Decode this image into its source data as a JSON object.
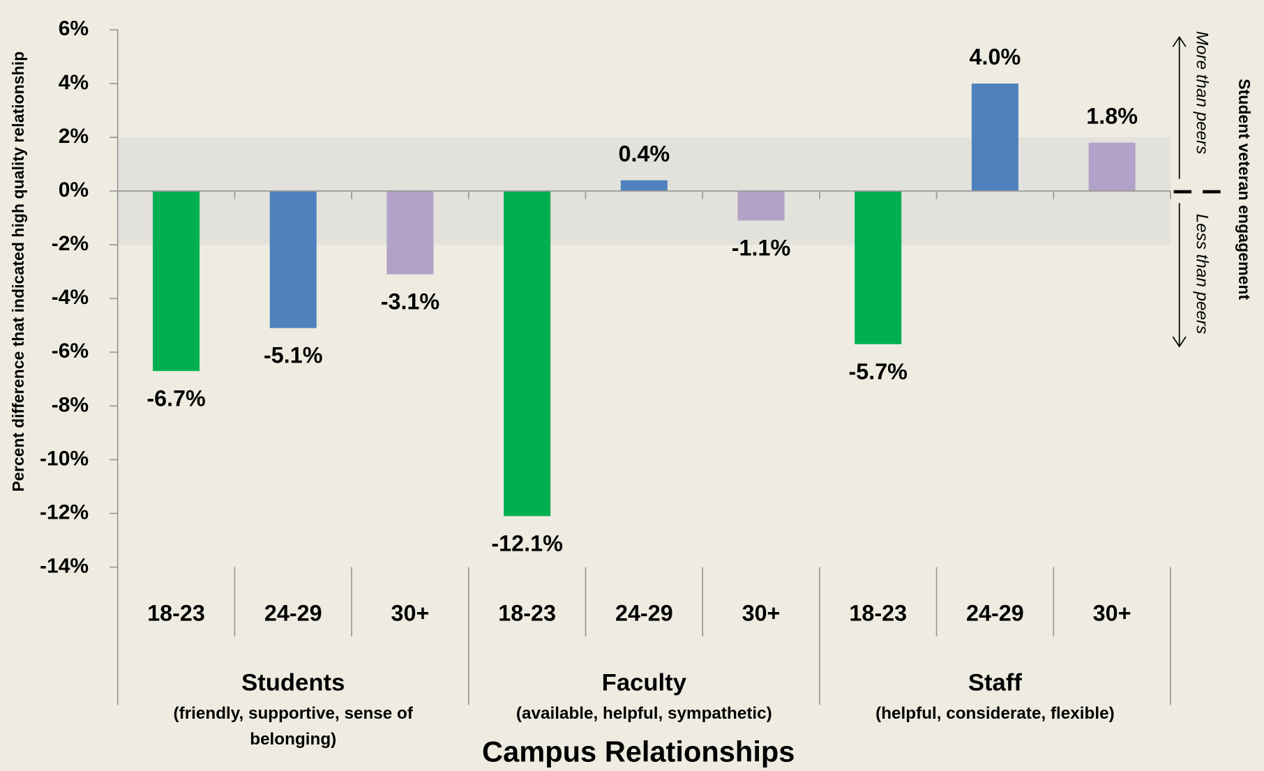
{
  "chart_data": {
    "type": "bar",
    "y_axis_label": "Percent difference that indicated high quality relationship",
    "x_axis_label": "Campus Relationships",
    "side_label": "Student veteran engagement",
    "up_label": "More than peers",
    "down_label": "Less than peers",
    "categories": [
      "18-23",
      "24-29",
      "30+",
      "18-23",
      "24-29",
      "30+",
      "18-23",
      "24-29",
      "30+"
    ],
    "groups": [
      {
        "label": "Students",
        "sublabel": "(friendly, supportive, sense of belonging)"
      },
      {
        "label": "Faculty",
        "sublabel": "(available, helpful, sympathetic)"
      },
      {
        "label": "Staff",
        "sublabel": "(helpful, considerate, flexible)"
      }
    ],
    "values": [
      -6.7,
      -5.1,
      -3.1,
      -12.1,
      0.4,
      -1.1,
      -5.7,
      4.0,
      1.8
    ],
    "value_labels": [
      "-6.7%",
      "-5.1%",
      "-3.1%",
      "-12.1%",
      "0.4%",
      "-1.1%",
      "-5.7%",
      "4.0%",
      "1.8%"
    ],
    "colors": [
      "#00b050",
      "#4f81bd",
      "#b3a2c7",
      "#00b050",
      "#4f81bd",
      "#b3a2c7",
      "#00b050",
      "#4f81bd",
      "#b3a2c7"
    ],
    "reference_band": [
      -2,
      2
    ],
    "ylim": [
      -14,
      6
    ],
    "yticks": [
      {
        "value": 6,
        "label": "6%"
      },
      {
        "value": 4,
        "label": "4%"
      },
      {
        "value": 2,
        "label": "2%"
      },
      {
        "value": 0,
        "label": "0%"
      },
      {
        "value": -2,
        "label": "-2%"
      },
      {
        "value": -4,
        "label": "-4%"
      },
      {
        "value": -6,
        "label": "-6%"
      },
      {
        "value": -8,
        "label": "-8%"
      },
      {
        "value": -10,
        "label": "-10%"
      },
      {
        "value": -12,
        "label": "-12%"
      },
      {
        "value": -14,
        "label": "-14%"
      }
    ]
  }
}
